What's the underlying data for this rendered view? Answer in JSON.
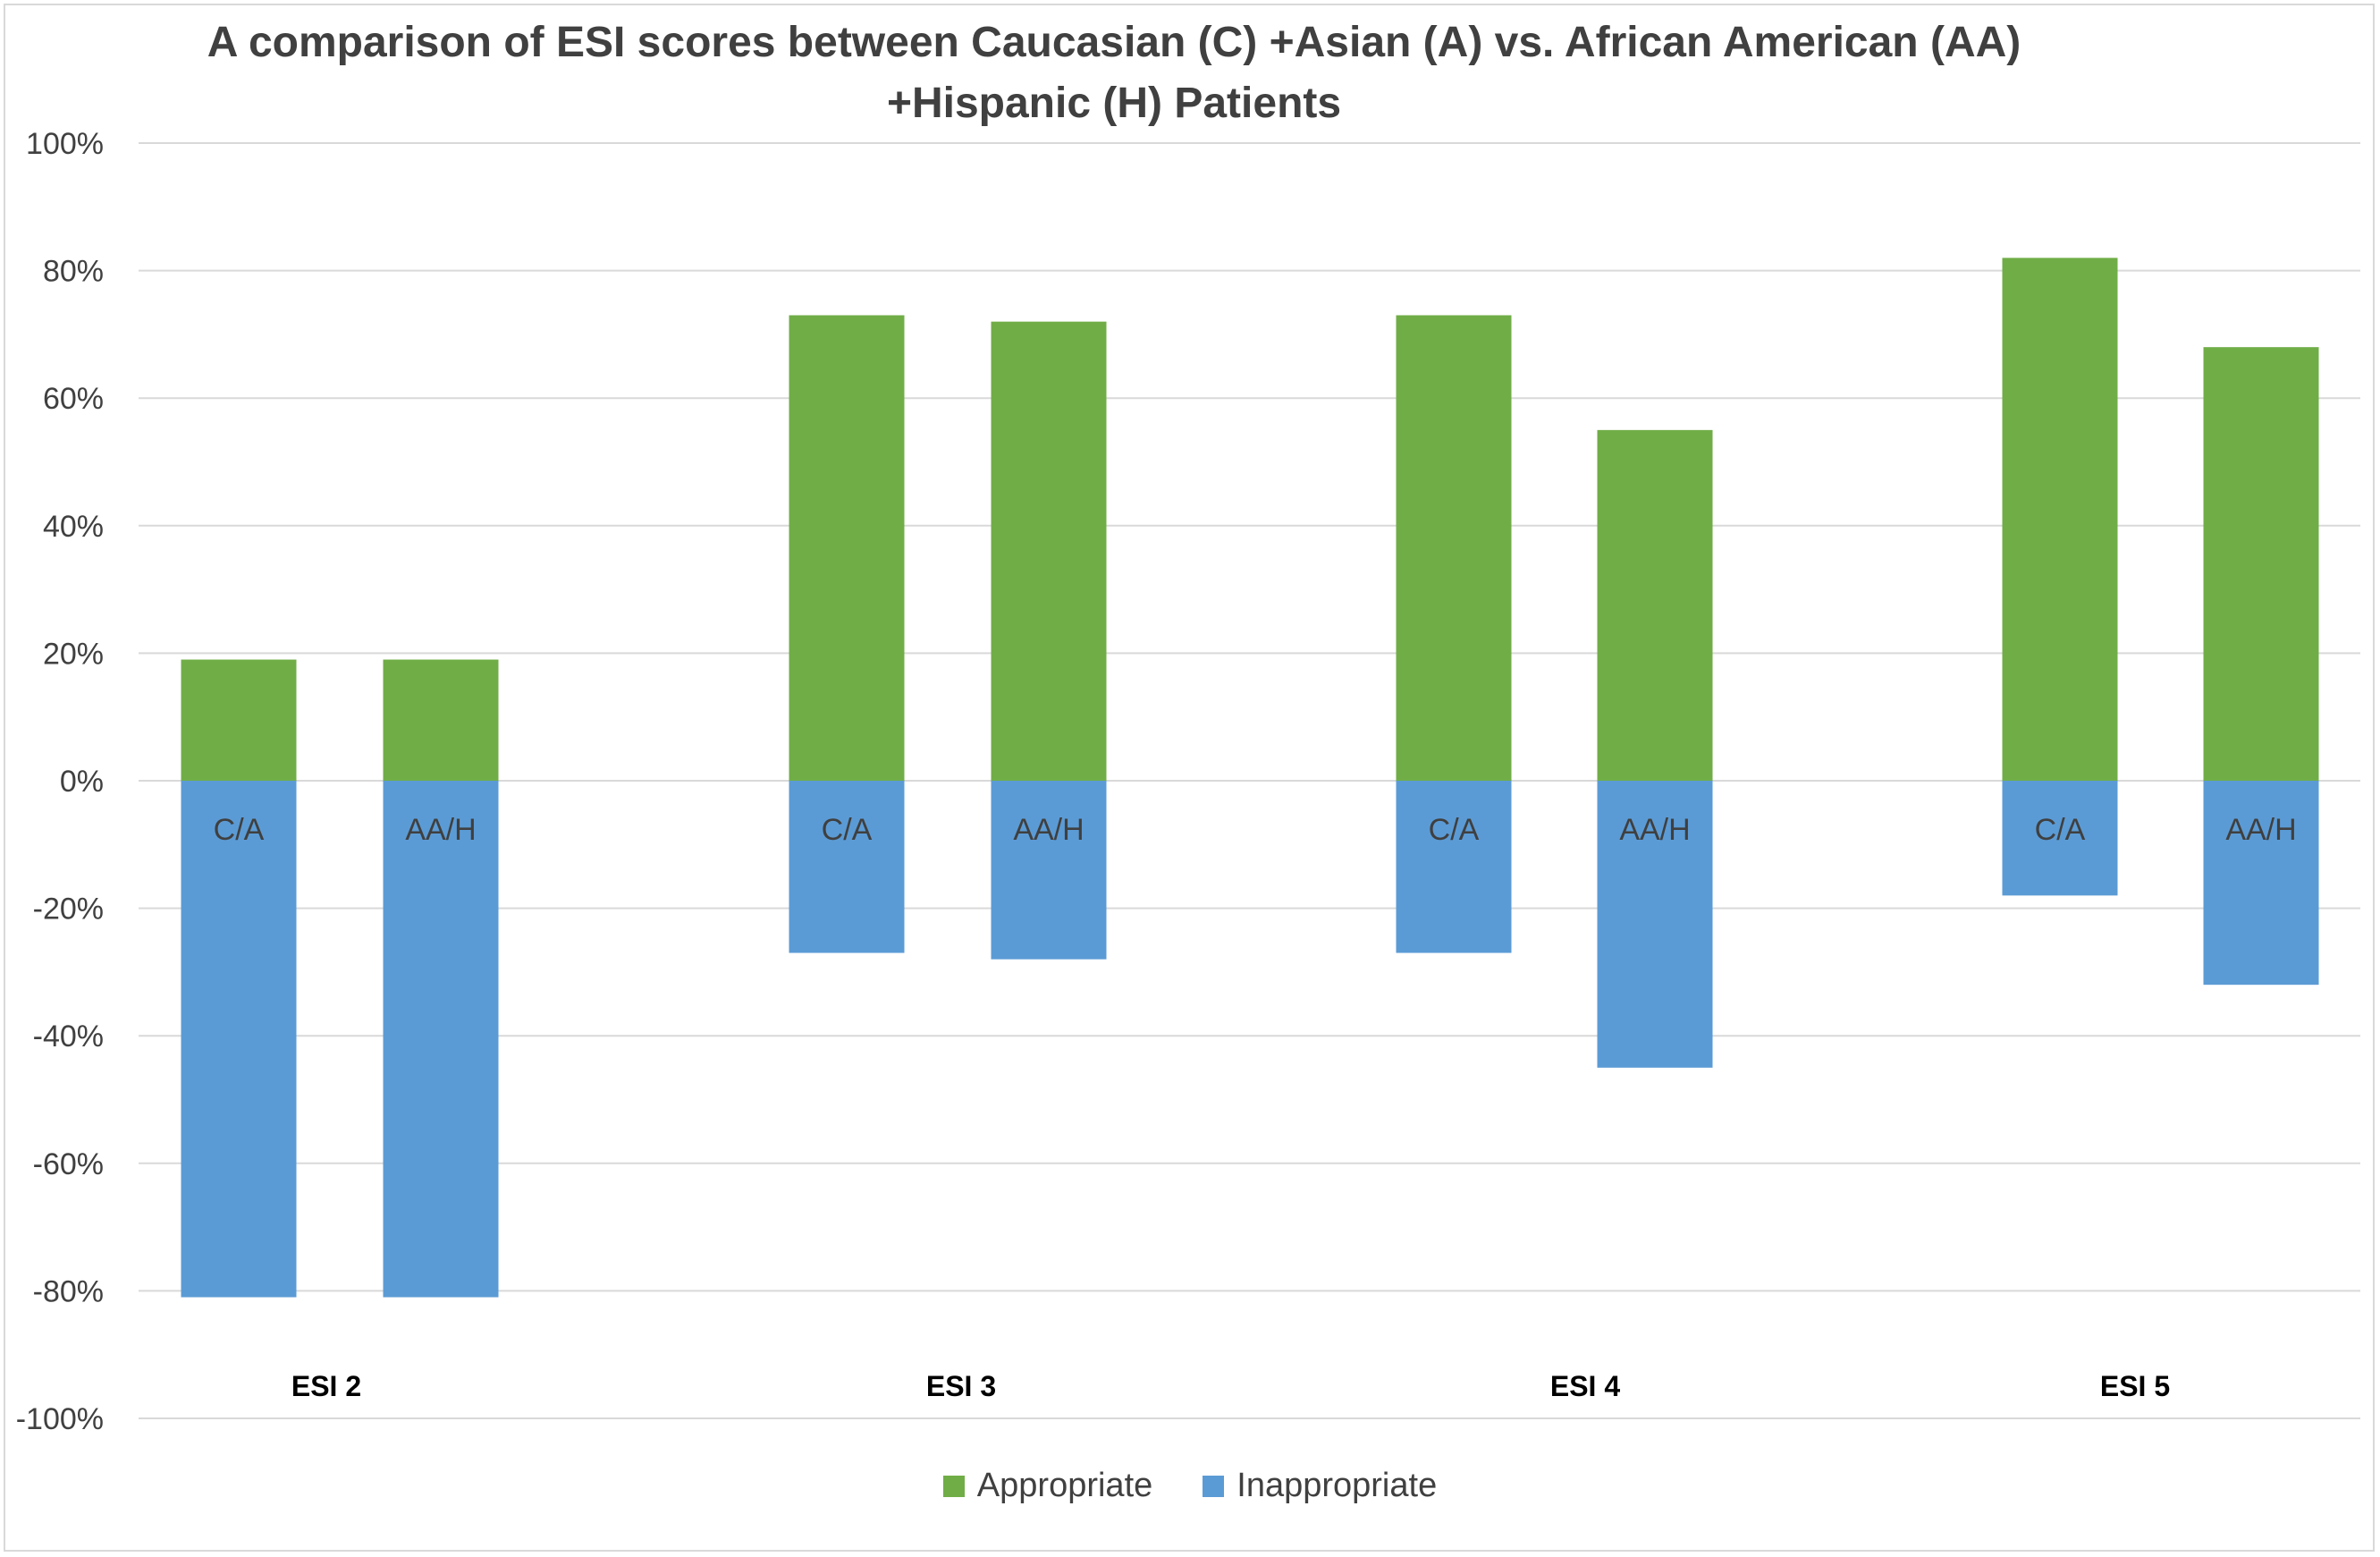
{
  "chart_data": {
    "type": "bar",
    "title": "A comparison of ESI scores between Caucasian (C) +Asian (A) vs. African American (AA)\n+Hispanic (H) Patients",
    "categories": [
      "ESI 2",
      "ESI 3",
      "ESI 4",
      "ESI 5"
    ],
    "groups": [
      "C/A",
      "AA/H"
    ],
    "series": [
      {
        "name": "Appropriate",
        "color": "#70ad47",
        "values": [
          [
            19,
            19
          ],
          [
            73,
            72
          ],
          [
            73,
            55
          ],
          [
            82,
            68
          ]
        ]
      },
      {
        "name": "Inappropriate",
        "color": "#5b9bd5",
        "values": [
          [
            -81,
            -81
          ],
          [
            -27,
            -28
          ],
          [
            -27,
            -45
          ],
          [
            -18,
            -32
          ]
        ]
      }
    ],
    "yticks": [
      "100%",
      "80%",
      "60%",
      "40%",
      "20%",
      "0%",
      "-20%",
      "-40%",
      "-60%",
      "-80%",
      "-100%"
    ],
    "ylim": [
      -100,
      100
    ],
    "grid": true,
    "legend_position": "bottom",
    "xlabel": "",
    "ylabel": ""
  }
}
